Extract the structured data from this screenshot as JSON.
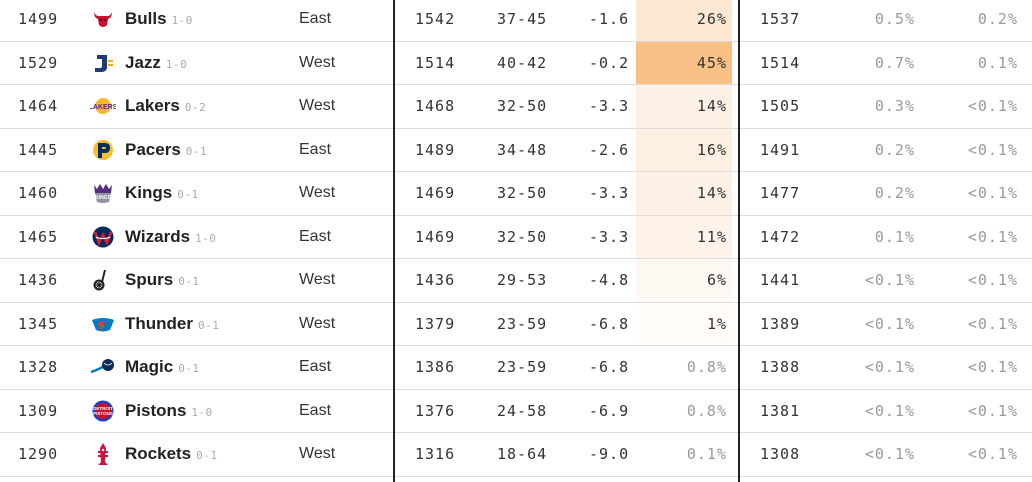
{
  "rows": [
    {
      "elo": "1499",
      "logo": "bulls-icon",
      "team": "Bulls",
      "team_record": "1-0",
      "conference": "East",
      "proj_elo": "1542",
      "proj_record": "37-45",
      "point_diff": "-1.6",
      "make_playoffs": "26%",
      "playoff_shade": "#fce7d2",
      "final_elo": "1537",
      "make_finals": "0.5%",
      "win_title": "0.2%"
    },
    {
      "elo": "1529",
      "logo": "jazz-icon",
      "team": "Jazz",
      "team_record": "1-0",
      "conference": "West",
      "proj_elo": "1514",
      "proj_record": "40-42",
      "point_diff": "-0.2",
      "make_playoffs": "45%",
      "playoff_shade": "#f8c084",
      "final_elo": "1514",
      "make_finals": "0.7%",
      "win_title": "0.1%"
    },
    {
      "elo": "1464",
      "logo": "lakers-icon",
      "team": "Lakers",
      "team_record": "0-2",
      "conference": "West",
      "proj_elo": "1468",
      "proj_record": "32-50",
      "point_diff": "-3.3",
      "make_playoffs": "14%",
      "playoff_shade": "#fdf1e6",
      "final_elo": "1505",
      "make_finals": "0.3%",
      "win_title": "<0.1%"
    },
    {
      "elo": "1445",
      "logo": "pacers-icon",
      "team": "Pacers",
      "team_record": "0-1",
      "conference": "East",
      "proj_elo": "1489",
      "proj_record": "34-48",
      "point_diff": "-2.6",
      "make_playoffs": "16%",
      "playoff_shade": "#fdefe2",
      "final_elo": "1491",
      "make_finals": "0.2%",
      "win_title": "<0.1%"
    },
    {
      "elo": "1460",
      "logo": "kings-icon",
      "team": "Kings",
      "team_record": "0-1",
      "conference": "West",
      "proj_elo": "1469",
      "proj_record": "32-50",
      "point_diff": "-3.3",
      "make_playoffs": "14%",
      "playoff_shade": "#fdf1e6",
      "final_elo": "1477",
      "make_finals": "0.2%",
      "win_title": "<0.1%"
    },
    {
      "elo": "1465",
      "logo": "wizards-icon",
      "team": "Wizards",
      "team_record": "1-0",
      "conference": "East",
      "proj_elo": "1469",
      "proj_record": "32-50",
      "point_diff": "-3.3",
      "make_playoffs": "11%",
      "playoff_shade": "#fdf3ea",
      "final_elo": "1472",
      "make_finals": "0.1%",
      "win_title": "<0.1%"
    },
    {
      "elo": "1436",
      "logo": "spurs-icon",
      "team": "Spurs",
      "team_record": "0-1",
      "conference": "West",
      "proj_elo": "1436",
      "proj_record": "29-53",
      "point_diff": "-4.8",
      "make_playoffs": "6%",
      "playoff_shade": "#fef8f2",
      "final_elo": "1441",
      "make_finals": "<0.1%",
      "win_title": "<0.1%"
    },
    {
      "elo": "1345",
      "logo": "thunder-icon",
      "team": "Thunder",
      "team_record": "0-1",
      "conference": "West",
      "proj_elo": "1379",
      "proj_record": "23-59",
      "point_diff": "-6.8",
      "make_playoffs": "1%",
      "playoff_shade": "#fffcfa",
      "final_elo": "1389",
      "make_finals": "<0.1%",
      "win_title": "<0.1%"
    },
    {
      "elo": "1328",
      "logo": "magic-icon",
      "team": "Magic",
      "team_record": "0-1",
      "conference": "East",
      "proj_elo": "1386",
      "proj_record": "23-59",
      "point_diff": "-6.8",
      "make_playoffs": "0.8%",
      "playoff_shade": "#ffffff",
      "final_elo": "1388",
      "make_finals": "<0.1%",
      "win_title": "<0.1%"
    },
    {
      "elo": "1309",
      "logo": "pistons-icon",
      "team": "Pistons",
      "team_record": "1-0",
      "conference": "East",
      "proj_elo": "1376",
      "proj_record": "24-58",
      "point_diff": "-6.9",
      "make_playoffs": "0.8%",
      "playoff_shade": "#ffffff",
      "final_elo": "1381",
      "make_finals": "<0.1%",
      "win_title": "<0.1%"
    },
    {
      "elo": "1290",
      "logo": "rockets-icon",
      "team": "Rockets",
      "team_record": "0-1",
      "conference": "West",
      "proj_elo": "1316",
      "proj_record": "18-64",
      "point_diff": "-9.0",
      "make_playoffs": "0.1%",
      "playoff_shade": "#ffffff",
      "final_elo": "1308",
      "make_finals": "<0.1%",
      "win_title": "<0.1%"
    }
  ]
}
